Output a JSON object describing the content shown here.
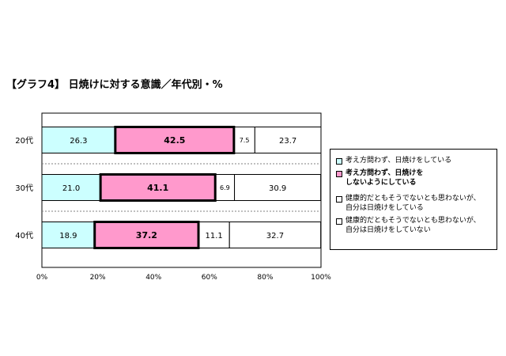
{
  "title": "【グラフ4】 日焼けに対する意識／年代別・%",
  "colors": {
    "series1": "#ccffff",
    "series2": "#ff99cc",
    "series3": "#ffffff",
    "series4": "#ffffff",
    "frame": "#000000",
    "separator": "#808080"
  },
  "chart_data": {
    "type": "bar",
    "orientation": "horizontal",
    "stacked": true,
    "title": "【グラフ4】 日焼けに対する意識／年代別・%",
    "categories": [
      "20代",
      "30代",
      "40代"
    ],
    "series": [
      {
        "name": "考え方問わず、日焼けをしている",
        "values": [
          26.3,
          21.0,
          18.9
        ],
        "labels": [
          "26.3",
          "21.0",
          "18.9"
        ],
        "bold": false
      },
      {
        "name": "考え方問わず、日焼けを\nしないようにしている",
        "values": [
          42.5,
          41.1,
          37.2
        ],
        "labels": [
          "42.5",
          "41.1",
          "37.2"
        ],
        "bold": true
      },
      {
        "name": "健康的だともそうでないとも思わないが、\n自分は日焼けをしている",
        "values": [
          7.5,
          6.9,
          11.1
        ],
        "labels": [
          "7.5",
          "6.9",
          "11.1"
        ],
        "bold": false
      },
      {
        "name": "健康的だともそうでないとも思わないが、\n自分は日焼けをしていない",
        "values": [
          23.7,
          30.9,
          32.7
        ],
        "labels": [
          "23.7",
          "30.9",
          "32.7"
        ],
        "bold": false
      }
    ],
    "xlim": [
      0,
      100
    ],
    "ticks": [
      "0%",
      "20%",
      "40%",
      "60%",
      "80%",
      "100%"
    ],
    "legend_position": "right",
    "grid": false
  }
}
